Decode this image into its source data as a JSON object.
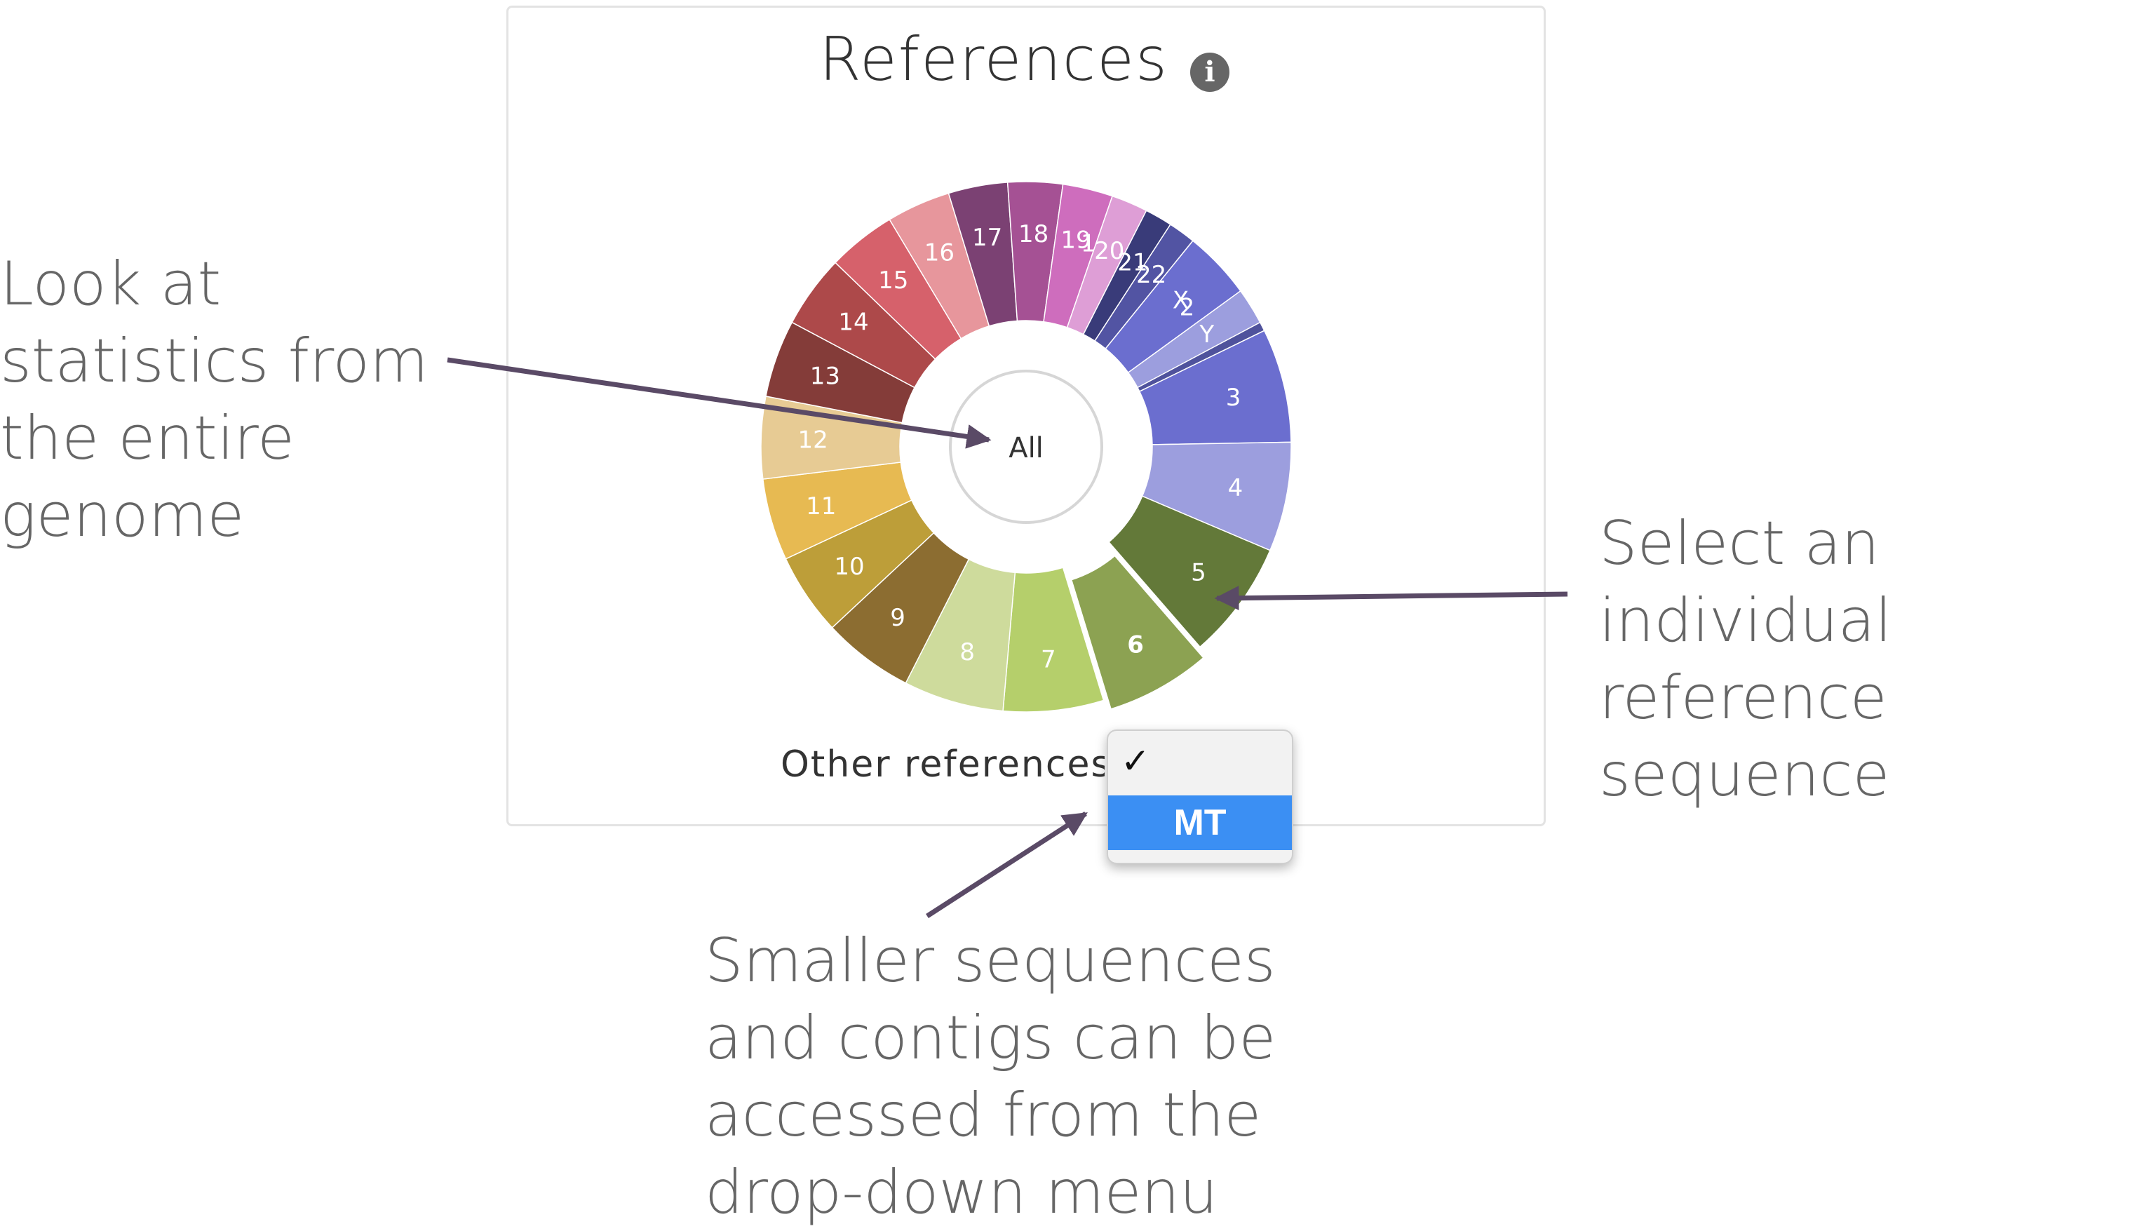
{
  "panel": {
    "title": "References"
  },
  "wheel": {
    "center_label": "All",
    "highlighted": "6",
    "segments": [
      {
        "label": "1",
        "color": "#3a3a7c"
      },
      {
        "label": "2",
        "color": "#4f529c"
      },
      {
        "label": "3",
        "color": "#6b6ecf"
      },
      {
        "label": "4",
        "color": "#9c9ede"
      },
      {
        "label": "5",
        "color": "#637939"
      },
      {
        "label": "6",
        "color": "#8ca252"
      },
      {
        "label": "7",
        "color": "#b5cf6b"
      },
      {
        "label": "8",
        "color": "#cedb9c"
      },
      {
        "label": "9",
        "color": "#8c6d31"
      },
      {
        "label": "10",
        "color": "#bd9e39"
      },
      {
        "label": "11",
        "color": "#e7ba52"
      },
      {
        "label": "12",
        "color": "#e7cb94"
      },
      {
        "label": "13",
        "color": "#843c39"
      },
      {
        "label": "14",
        "color": "#ad494a"
      },
      {
        "label": "15",
        "color": "#d6616b"
      },
      {
        "label": "16",
        "color": "#e7969c"
      },
      {
        "label": "17",
        "color": "#7b4173"
      },
      {
        "label": "18",
        "color": "#a55194"
      },
      {
        "label": "19",
        "color": "#ce6dbd"
      },
      {
        "label": "20",
        "color": "#de9ed6"
      },
      {
        "label": "21",
        "color": "#393b79"
      },
      {
        "label": "22",
        "color": "#5254a3"
      },
      {
        "label": "X",
        "color": "#6b6ecf"
      },
      {
        "label": "Y",
        "color": "#9c9ede"
      }
    ]
  },
  "other_references": {
    "label": "Other references",
    "check": "✓",
    "options": [
      "MT"
    ]
  },
  "annotations": {
    "all": "Look at statistics from the entire genome",
    "individual": "Select an individual reference sequence",
    "smaller": "Smaller sequences and contigs can be accessed from the drop-down menu"
  },
  "colors": {
    "arrow": "#5a4a66",
    "dropdown_selected": "#3b8ff3"
  }
}
